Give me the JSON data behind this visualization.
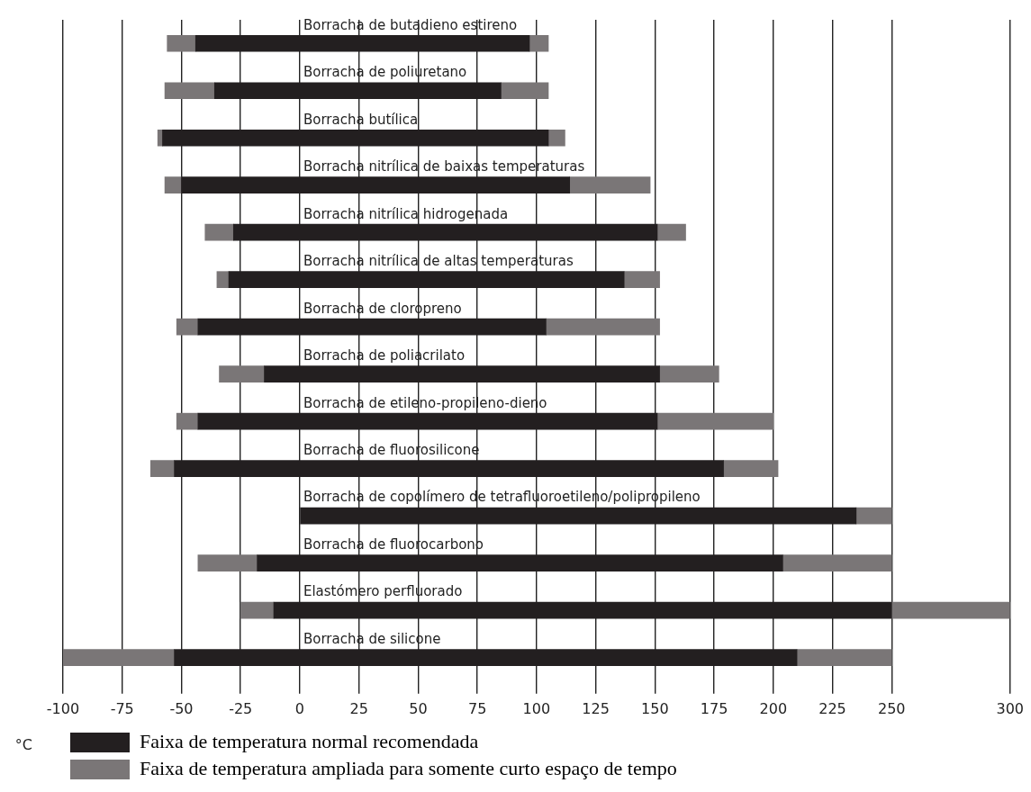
{
  "chart_data": {
    "type": "bar",
    "orientation": "horizontal",
    "xlabel": "°C",
    "categories": [
      "Borracha de butadieno estireno",
      "Borracha de poliuretano",
      "Borracha butílica",
      "Borracha nitrílica de baixas temperaturas",
      "Borracha nitrílica hidrogenada",
      "Borracha nitrílica de altas temperaturas",
      "Borracha de cloropreno",
      "Borracha de poliacrilato",
      "Borracha de etileno-propileno-dieno",
      "Borracha de fluorosilicone",
      "Borracha de copolímero de tetrafluoroetileno/polipropileno",
      "Borracha de fluorocarbono",
      "Elastómero perfluorado",
      "Borracha de silicone"
    ],
    "series": [
      {
        "name": "Faixa de temperatura normal recomendada",
        "color": "#231f20",
        "base": [
          -44,
          -36,
          -58,
          -50,
          -28,
          -30,
          -43,
          -15,
          -43,
          -53,
          0,
          -18,
          -11,
          -53
        ],
        "values": [
          141,
          121,
          163,
          164,
          179,
          167,
          147,
          167,
          194,
          232,
          235,
          222,
          261,
          263
        ]
      },
      {
        "name": "Faixa de temperatura ampliada para somente curto espaço de tempo",
        "color": "#7a7677",
        "base": [
          -56,
          -57,
          -60,
          -57,
          -40,
          -35,
          -52,
          -34,
          -52,
          -63,
          null,
          -43,
          -25,
          -100
        ],
        "values": [
          12,
          21,
          2,
          7,
          12,
          5,
          9,
          19,
          9,
          10,
          null,
          25,
          14,
          47
        ]
      },
      {
        "color": "#7a7677",
        "base": [
          97,
          85,
          105,
          114,
          151,
          137,
          104,
          152,
          151,
          179,
          235,
          204,
          250,
          210
        ],
        "values": [
          8,
          20,
          7,
          34,
          12,
          15,
          48,
          25,
          49,
          23,
          15,
          46,
          50,
          40
        ]
      }
    ],
    "xlim": [
      -100,
      300
    ],
    "xticks": [
      -100,
      -75,
      -50,
      -25,
      0,
      25,
      50,
      75,
      100,
      125,
      150,
      175,
      200,
      225,
      250,
      300
    ],
    "grid": "x",
    "legend": "bottom left"
  }
}
